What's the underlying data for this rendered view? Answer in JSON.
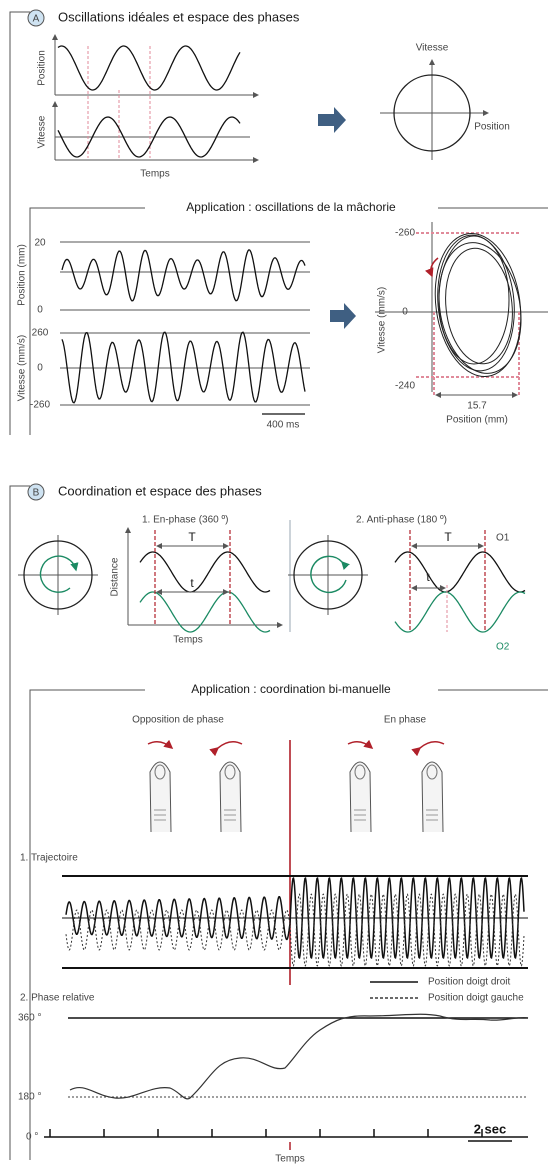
{
  "section_a": {
    "badge": "A",
    "title": "Oscillations idéales et espace des phases",
    "ideal": {
      "position_label": "Position",
      "velocity_label": "Vitesse",
      "time_label": "Temps",
      "phase_y_label": "Vitesse",
      "phase_x_label": "Position"
    },
    "application": {
      "title": "Application : oscillations de la mâchorie",
      "position_label": "Position (mm)",
      "position_ticks": [
        "20",
        "0"
      ],
      "velocity_label": "Vitesse (mm/s)",
      "velocity_ticks": [
        "260",
        "0",
        "-260"
      ],
      "scale_bar": "400 ms",
      "phase_y_label": "Vitesse (mm/s)",
      "phase_y_ticks": [
        "-260",
        "0",
        "-240"
      ],
      "phase_x_value": "15.7",
      "phase_x_label": "Position (mm)"
    }
  },
  "section_b": {
    "badge": "B",
    "title": "Coordination et espace des phases",
    "in_phase": {
      "title": "1. En-phase (360 º)",
      "period": "T",
      "lag": "t",
      "y_label": "Distance",
      "x_label": "Temps"
    },
    "anti_phase": {
      "title": "2. Anti-phase (180 º)",
      "period": "T",
      "lag": "t",
      "osc1": "O1",
      "osc2": "O2"
    },
    "application": {
      "title": "Application : coordination bi-manuelle",
      "opposition": "Opposition de phase",
      "same_phase": "En phase",
      "trajectory_title": "1. Trajectoire",
      "legend_right": "Position doigt droit",
      "legend_left": "Position doigt gauche",
      "relative_phase_title": "2. Phase relative",
      "phase_ticks": [
        "360 °",
        "180 °",
        "0 °"
      ],
      "scale_bar": "2 sec",
      "time_label": "Temps"
    }
  }
}
